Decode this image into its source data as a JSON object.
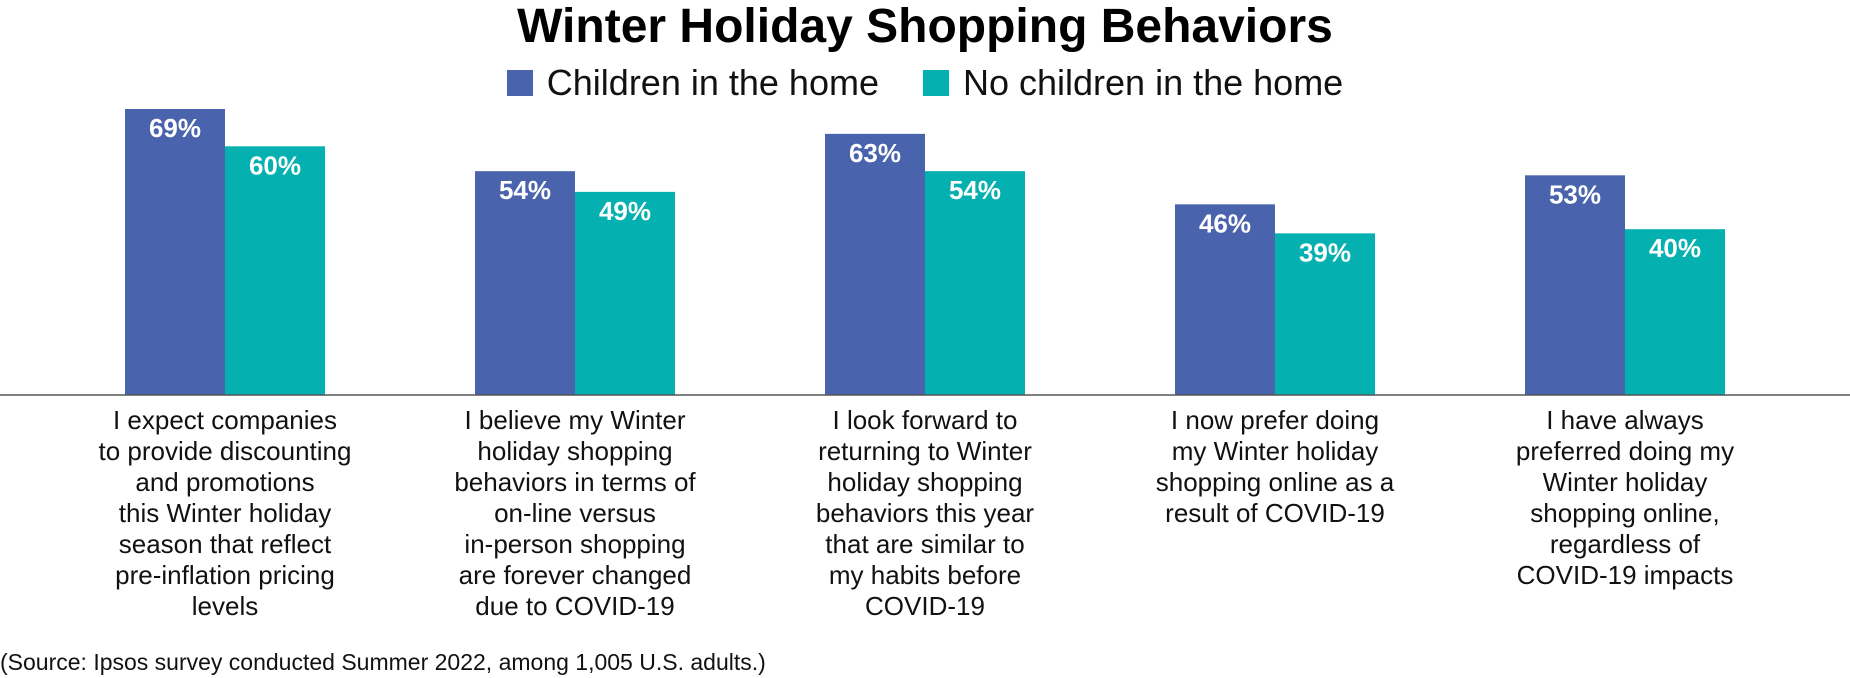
{
  "colors": {
    "series_children": "#4a63ad",
    "series_no_children": "#04b0b0",
    "axis": "#555555"
  },
  "source_note": "(Source: Ipsos survey conducted Summer 2022, among 1,005 U.S. adults.)",
  "chart_data": {
    "type": "bar",
    "title": "Winter Holiday Shopping Behaviors",
    "legend_position": "top-center",
    "grid": false,
    "ylim": [
      0,
      100
    ],
    "categories": [
      [
        "I expect companies",
        "to provide discounting",
        "and promotions",
        "this Winter holiday",
        "season that reflect",
        "pre-inflation pricing",
        "levels"
      ],
      [
        "I believe my Winter",
        "holiday shopping",
        "behaviors in terms of",
        "on-line versus",
        "in-person shopping",
        "are forever changed",
        "due to COVID-19"
      ],
      [
        "I look forward to",
        "returning to Winter",
        "holiday shopping",
        "behaviors this year",
        "that are similar to",
        "my habits before",
        "COVID-19"
      ],
      [
        "I now prefer doing",
        "my Winter holiday",
        "shopping online as a",
        "result of COVID-19"
      ],
      [
        "I have always",
        "preferred doing my",
        "Winter holiday",
        "shopping online,",
        "regardless of",
        "COVID-19 impacts"
      ]
    ],
    "series": [
      {
        "name": "Children in the home",
        "values": [
          69,
          54,
          63,
          46,
          53
        ],
        "labels": [
          "69%",
          "54%",
          "63%",
          "46%",
          "53%"
        ]
      },
      {
        "name": "No children in the home",
        "values": [
          60,
          49,
          54,
          39,
          40
        ],
        "labels": [
          "60%",
          "49%",
          "54%",
          "39%",
          "40%"
        ]
      }
    ]
  }
}
